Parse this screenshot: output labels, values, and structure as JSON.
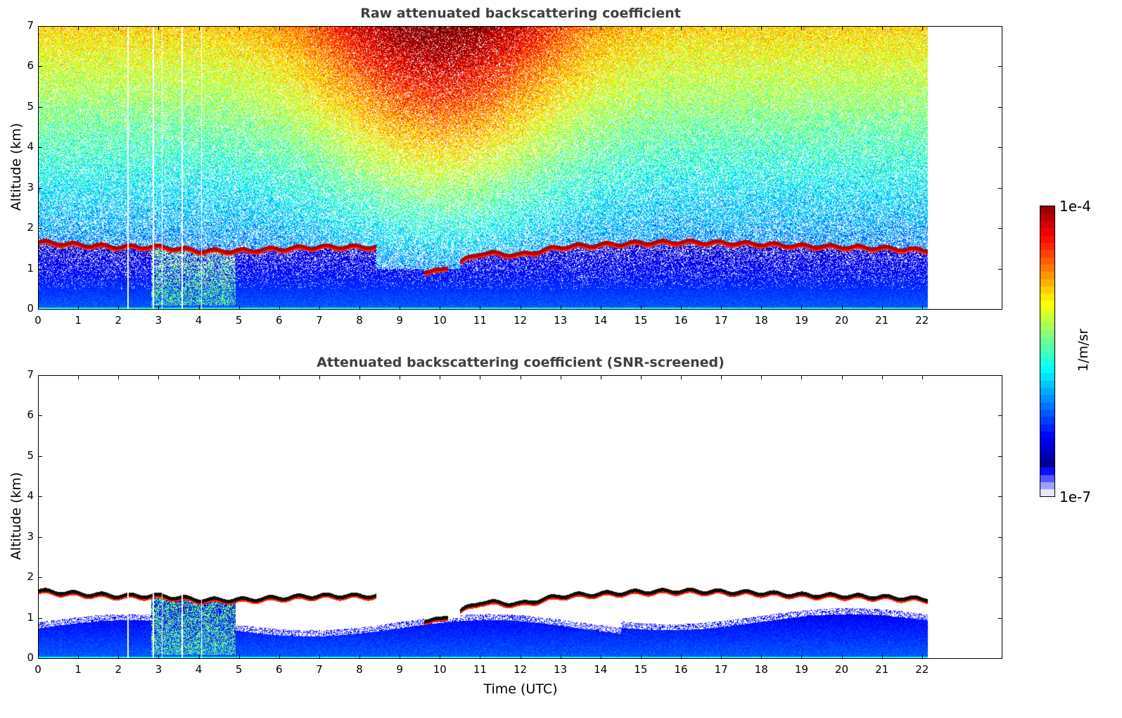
{
  "chart_data": [
    {
      "type": "heatmap",
      "title": "Raw attenuated backscattering coefficient",
      "xlabel": "",
      "ylabel": "Altitude (km)",
      "xlim": [
        0,
        24
      ],
      "ylim": [
        0,
        7
      ],
      "xticks": [
        0,
        1,
        2,
        3,
        4,
        5,
        6,
        7,
        8,
        9,
        10,
        11,
        12,
        13,
        14,
        15,
        16,
        17,
        18,
        19,
        20,
        21,
        22
      ],
      "yticks": [
        0,
        1,
        2,
        3,
        4,
        5,
        6,
        7
      ],
      "data_end_hour": 22.15,
      "screened": false
    },
    {
      "type": "heatmap",
      "title": "Attenuated backscattering coefficient (SNR-screened)",
      "xlabel": "Time (UTC)",
      "ylabel": "Altitude (km)",
      "xlim": [
        0,
        24
      ],
      "ylim": [
        0,
        7
      ],
      "xticks": [
        0,
        1,
        2,
        3,
        4,
        5,
        6,
        7,
        8,
        9,
        10,
        11,
        12,
        13,
        14,
        15,
        16,
        17,
        18,
        19,
        20,
        21,
        22
      ],
      "yticks": [
        0,
        1,
        2,
        3,
        4,
        5,
        6,
        7
      ],
      "data_end_hour": 22.15,
      "screened": true
    }
  ],
  "cloud_layer_top_km_hourly": [
    1.72,
    1.65,
    1.6,
    1.6,
    1.5,
    1.5,
    1.55,
    1.6,
    1.6,
    null,
    1.0,
    1.45,
    1.4,
    1.6,
    1.65,
    1.7,
    1.72,
    1.7,
    1.67,
    1.62,
    1.6,
    1.57,
    1.52
  ],
  "data_gap_hours": [
    2.22,
    2.85,
    3.07,
    3.57,
    4.05
  ],
  "colorbar": {
    "label": "1/m/sr",
    "min_label": "1e-7",
    "max_label": "1e-4",
    "scale": "log",
    "colormap": "jet"
  }
}
